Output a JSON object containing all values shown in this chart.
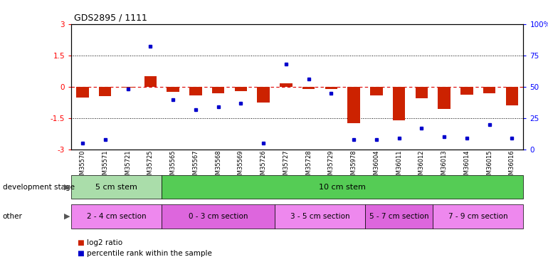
{
  "title": "GDS2895 / 1111",
  "samples": [
    "GSM35570",
    "GSM35571",
    "GSM35721",
    "GSM35725",
    "GSM35565",
    "GSM35567",
    "GSM35568",
    "GSM35569",
    "GSM35726",
    "GSM35727",
    "GSM35728",
    "GSM35729",
    "GSM35978",
    "GSM36004",
    "GSM36011",
    "GSM36012",
    "GSM36013",
    "GSM36014",
    "GSM36015",
    "GSM36016"
  ],
  "log2_ratio": [
    -0.5,
    -0.45,
    -0.05,
    0.5,
    -0.25,
    -0.4,
    -0.3,
    -0.2,
    -0.75,
    0.15,
    -0.12,
    -0.1,
    -1.75,
    -0.4,
    -1.6,
    -0.55,
    -1.05,
    -0.38,
    -0.32,
    -0.9
  ],
  "percentile": [
    5,
    8,
    48,
    82,
    40,
    32,
    34,
    37,
    5,
    68,
    56,
    45,
    8,
    8,
    9,
    17,
    10,
    9,
    20,
    9
  ],
  "ylim": [
    -3,
    3
  ],
  "bar_color": "#cc2200",
  "dot_color": "#0000cc",
  "bar_width": 0.55,
  "development_stage_groups": [
    {
      "label": "5 cm stem",
      "start": 0,
      "end": 3,
      "color": "#aaddaa"
    },
    {
      "label": "10 cm stem",
      "start": 4,
      "end": 19,
      "color": "#55cc55"
    }
  ],
  "other_groups": [
    {
      "label": "2 - 4 cm section",
      "start": 0,
      "end": 3,
      "color": "#ee88ee"
    },
    {
      "label": "0 - 3 cm section",
      "start": 4,
      "end": 8,
      "color": "#dd66dd"
    },
    {
      "label": "3 - 5 cm section",
      "start": 9,
      "end": 12,
      "color": "#ee88ee"
    },
    {
      "label": "5 - 7 cm section",
      "start": 13,
      "end": 15,
      "color": "#dd66dd"
    },
    {
      "label": "7 - 9 cm section",
      "start": 16,
      "end": 19,
      "color": "#ee88ee"
    }
  ],
  "left_label": "development stage",
  "other_label": "other",
  "legend_log2": "log2 ratio",
  "legend_pct": "percentile rank within the sample",
  "bg_color": "#ffffff",
  "axis_bg_color": "#ffffff",
  "zero_line_color": "#dd0000"
}
